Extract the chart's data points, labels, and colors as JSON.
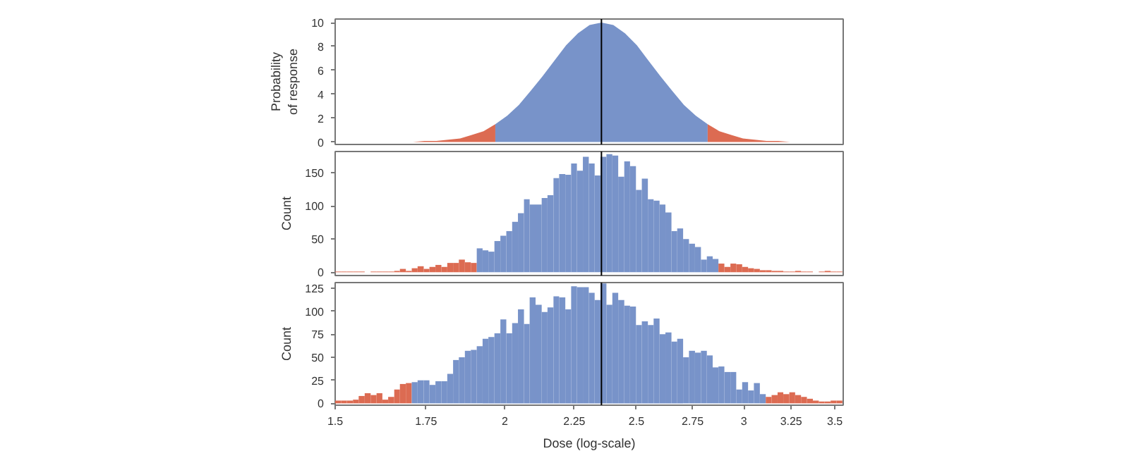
{
  "chart_data": [
    {
      "type": "area",
      "ylabel": "Probability\nof response",
      "log": "x",
      "tick_labels": "y",
      "xlim": [
        1.5,
        3.55
      ],
      "xticks": [
        1.5,
        1.75,
        2,
        2.25,
        2.5,
        2.75,
        3,
        3.25,
        3.5
      ],
      "ylim": [
        -0.2,
        10.3
      ],
      "yticks": [
        0,
        2,
        4,
        6,
        8,
        10
      ],
      "ref_lines": [
        {
          "axis": "x",
          "value": 2.356,
          "color": "#000000"
        }
      ],
      "series": [
        {
          "color": "#dc6b52",
          "x": [
            1.711,
            1.745,
            1.781,
            1.817,
            1.854,
            1.891,
            1.929,
            1.968
          ],
          "values": [
            0,
            0.1,
            0.1,
            0.2,
            0.3,
            0.6,
            0.9,
            1.5
          ]
        },
        {
          "color": "#7893c9",
          "x": [
            1.968,
            2.008,
            2.048,
            2.09,
            2.132,
            2.175,
            2.219,
            2.264,
            2.309,
            2.356,
            2.404,
            2.452,
            2.502,
            2.552,
            2.604,
            2.656,
            2.71,
            2.765,
            2.821
          ],
          "values": [
            1.5,
            2.2,
            3.1,
            4.3,
            5.5,
            6.8,
            8.1,
            9.1,
            9.8,
            10,
            9.8,
            9.1,
            8.1,
            6.8,
            5.5,
            4.3,
            3.1,
            2.2,
            1.5
          ]
        },
        {
          "color": "#dc6b52",
          "x": [
            2.821,
            2.878,
            2.936,
            2.995,
            3.055,
            3.117,
            3.18,
            3.245
          ],
          "values": [
            1.5,
            0.9,
            0.6,
            0.3,
            0.2,
            0.1,
            0.1,
            0
          ]
        }
      ]
    },
    {
      "type": "histogram",
      "ylabel": "Count",
      "log": "x",
      "tick_labels": "y",
      "xlim": [
        1.5,
        3.55
      ],
      "xticks": [
        1.5,
        1.75,
        2,
        2.25,
        2.5,
        2.75,
        3,
        3.25,
        3.5
      ],
      "ylim": [
        -5,
        182
      ],
      "yticks": [
        0,
        50,
        100,
        150
      ],
      "ref_lines": [
        {
          "axis": "x",
          "value": 2.356,
          "color": "#000000"
        }
      ],
      "bins": [
        1.5,
        1.515,
        1.53,
        1.546,
        1.561,
        1.577,
        1.593,
        1.609,
        1.625,
        1.641,
        1.658,
        1.674,
        1.691,
        1.708,
        1.725,
        1.743,
        1.76,
        1.778,
        1.796,
        1.814,
        1.832,
        1.85,
        1.869,
        1.888,
        1.907,
        1.926,
        1.945,
        1.965,
        1.985,
        2.005,
        2.025,
        2.045,
        2.066,
        2.086,
        2.107,
        2.129,
        2.15,
        2.172,
        2.193,
        2.216,
        2.238,
        2.26,
        2.283,
        2.306,
        2.329,
        2.352,
        2.376,
        2.4,
        2.424,
        2.449,
        2.473,
        2.498,
        2.523,
        2.549,
        2.574,
        2.6,
        2.626,
        2.653,
        2.679,
        2.706,
        2.733,
        2.761,
        2.789,
        2.817,
        2.845,
        2.873,
        2.902,
        2.932,
        2.961,
        2.991,
        3.021,
        3.051,
        3.082,
        3.113,
        3.144,
        3.176,
        3.207,
        3.24,
        3.272,
        3.305,
        3.338,
        3.372,
        3.406,
        3.44,
        3.475,
        3.51,
        3.545
      ],
      "values": [
        1,
        1,
        1,
        1,
        1,
        0,
        1,
        1,
        1,
        1,
        2,
        5,
        2,
        6,
        9,
        5,
        8,
        11,
        8,
        14,
        14,
        19,
        15,
        14,
        36,
        33,
        31,
        47,
        55,
        62,
        76,
        89,
        110,
        102,
        102,
        112,
        116,
        142,
        148,
        147,
        164,
        153,
        174,
        164,
        146,
        174,
        178,
        176,
        144,
        167,
        160,
        124,
        141,
        110,
        108,
        102,
        90,
        62,
        66,
        50,
        43,
        38,
        19,
        24,
        20,
        13,
        8,
        13,
        12,
        8,
        6,
        5,
        3,
        3,
        2,
        2,
        1,
        1,
        2,
        1,
        1,
        0,
        1,
        2,
        1,
        1
      ],
      "colors": [
        "#dc6b52",
        "#dc6b52",
        "#dc6b52",
        "#dc6b52",
        "#dc6b52",
        "#dc6b52",
        "#dc6b52",
        "#dc6b52",
        "#dc6b52",
        "#dc6b52",
        "#dc6b52",
        "#dc6b52",
        "#dc6b52",
        "#dc6b52",
        "#dc6b52",
        "#dc6b52",
        "#dc6b52",
        "#dc6b52",
        "#dc6b52",
        "#dc6b52",
        "#dc6b52",
        "#dc6b52",
        "#dc6b52",
        "#dc6b52",
        "#7893c9",
        "#7893c9",
        "#7893c9",
        "#7893c9",
        "#7893c9",
        "#7893c9",
        "#7893c9",
        "#7893c9",
        "#7893c9",
        "#7893c9",
        "#7893c9",
        "#7893c9",
        "#7893c9",
        "#7893c9",
        "#7893c9",
        "#7893c9",
        "#7893c9",
        "#7893c9",
        "#7893c9",
        "#7893c9",
        "#7893c9",
        "#7893c9",
        "#7893c9",
        "#7893c9",
        "#7893c9",
        "#7893c9",
        "#7893c9",
        "#7893c9",
        "#7893c9",
        "#7893c9",
        "#7893c9",
        "#7893c9",
        "#7893c9",
        "#7893c9",
        "#7893c9",
        "#7893c9",
        "#7893c9",
        "#7893c9",
        "#7893c9",
        "#7893c9",
        "#7893c9",
        "#dc6b52",
        "#dc6b52",
        "#dc6b52",
        "#dc6b52",
        "#dc6b52",
        "#dc6b52",
        "#dc6b52",
        "#dc6b52",
        "#dc6b52",
        "#dc6b52",
        "#dc6b52",
        "#dc6b52",
        "#dc6b52",
        "#dc6b52",
        "#dc6b52",
        "#dc6b52",
        "#dc6b52",
        "#dc6b52",
        "#dc6b52",
        "#dc6b52",
        "#dc6b52"
      ]
    },
    {
      "type": "histogram",
      "ylabel": "Count",
      "xlabel": "Dose (log-scale)",
      "log": "x",
      "xlim": [
        1.5,
        3.55
      ],
      "xticks": [
        1.5,
        1.75,
        2,
        2.25,
        2.5,
        2.75,
        3,
        3.25,
        3.5
      ],
      "ylim": [
        -2,
        131
      ],
      "yticks": [
        0,
        25,
        50,
        75,
        100,
        125
      ],
      "ref_lines": [
        {
          "axis": "x",
          "value": 2.356,
          "color": "#000000"
        }
      ],
      "bins": [
        1.5,
        1.515,
        1.53,
        1.546,
        1.561,
        1.577,
        1.593,
        1.609,
        1.625,
        1.641,
        1.658,
        1.674,
        1.691,
        1.708,
        1.725,
        1.743,
        1.76,
        1.778,
        1.796,
        1.814,
        1.832,
        1.85,
        1.869,
        1.888,
        1.907,
        1.926,
        1.945,
        1.965,
        1.985,
        2.005,
        2.025,
        2.045,
        2.066,
        2.086,
        2.107,
        2.129,
        2.15,
        2.172,
        2.193,
        2.216,
        2.238,
        2.26,
        2.283,
        2.306,
        2.329,
        2.352,
        2.376,
        2.4,
        2.424,
        2.449,
        2.473,
        2.498,
        2.523,
        2.549,
        2.574,
        2.6,
        2.626,
        2.653,
        2.679,
        2.706,
        2.733,
        2.761,
        2.789,
        2.817,
        2.845,
        2.873,
        2.902,
        2.932,
        2.961,
        2.991,
        3.021,
        3.051,
        3.082,
        3.113,
        3.144,
        3.176,
        3.207,
        3.24,
        3.272,
        3.305,
        3.338,
        3.372,
        3.406,
        3.44,
        3.475,
        3.51,
        3.545
      ],
      "values": [
        3,
        3,
        3,
        4,
        8,
        11,
        9,
        11,
        4,
        7,
        15,
        21,
        22,
        23,
        25,
        25,
        20,
        24,
        24,
        32,
        47,
        50,
        57,
        58,
        62,
        70,
        72,
        76,
        91,
        76,
        87,
        102,
        86,
        115,
        107,
        99,
        104,
        116,
        115,
        102,
        127,
        126,
        126,
        120,
        112,
        130,
        107,
        120,
        112,
        106,
        105,
        85,
        89,
        85,
        92,
        75,
        77,
        67,
        70,
        50,
        57,
        55,
        57,
        52,
        39,
        40,
        34,
        34,
        15,
        23,
        14,
        22,
        10,
        7,
        9,
        12,
        10,
        12,
        9,
        7,
        5,
        3,
        2,
        2,
        3,
        3
      ],
      "colors": [
        "#dc6b52",
        "#dc6b52",
        "#dc6b52",
        "#dc6b52",
        "#dc6b52",
        "#dc6b52",
        "#dc6b52",
        "#dc6b52",
        "#dc6b52",
        "#dc6b52",
        "#dc6b52",
        "#dc6b52",
        "#dc6b52",
        "#7893c9",
        "#7893c9",
        "#7893c9",
        "#7893c9",
        "#7893c9",
        "#7893c9",
        "#7893c9",
        "#7893c9",
        "#7893c9",
        "#7893c9",
        "#7893c9",
        "#7893c9",
        "#7893c9",
        "#7893c9",
        "#7893c9",
        "#7893c9",
        "#7893c9",
        "#7893c9",
        "#7893c9",
        "#7893c9",
        "#7893c9",
        "#7893c9",
        "#7893c9",
        "#7893c9",
        "#7893c9",
        "#7893c9",
        "#7893c9",
        "#7893c9",
        "#7893c9",
        "#7893c9",
        "#7893c9",
        "#7893c9",
        "#7893c9",
        "#7893c9",
        "#7893c9",
        "#7893c9",
        "#7893c9",
        "#7893c9",
        "#7893c9",
        "#7893c9",
        "#7893c9",
        "#7893c9",
        "#7893c9",
        "#7893c9",
        "#7893c9",
        "#7893c9",
        "#7893c9",
        "#7893c9",
        "#7893c9",
        "#7893c9",
        "#7893c9",
        "#7893c9",
        "#7893c9",
        "#7893c9",
        "#7893c9",
        "#7893c9",
        "#7893c9",
        "#7893c9",
        "#7893c9",
        "#7893c9",
        "#dc6b52",
        "#dc6b52",
        "#dc6b52",
        "#dc6b52",
        "#dc6b52",
        "#dc6b52",
        "#dc6b52",
        "#dc6b52",
        "#dc6b52",
        "#dc6b52",
        "#dc6b52",
        "#dc6b52",
        "#dc6b52"
      ]
    }
  ]
}
